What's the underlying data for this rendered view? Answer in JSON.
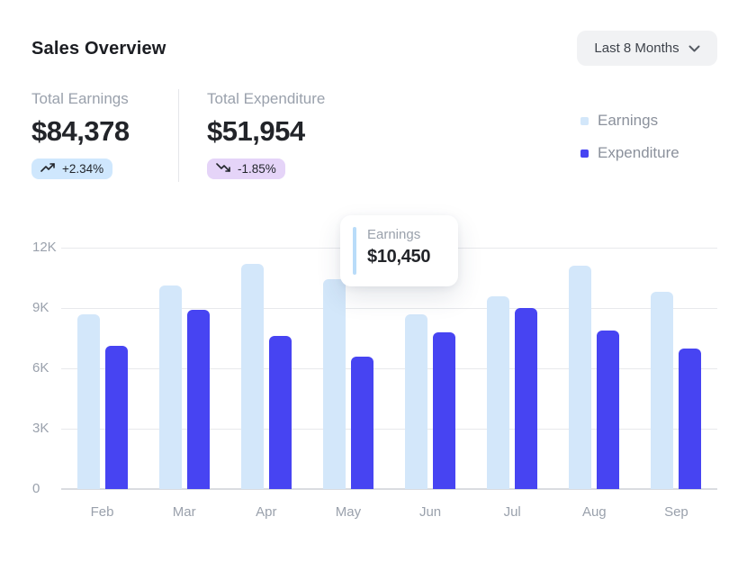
{
  "header": {
    "title": "Sales Overview",
    "range_dropdown": {
      "label": "Last 8 Months",
      "icon": "chevron-down"
    }
  },
  "stats": [
    {
      "label": "Total Earnings",
      "value": "$84,378",
      "delta": "+2.34%",
      "trend": "up",
      "icon": "trending-up",
      "badge_bg": "#cfe7fd",
      "badge_text": "#22262c"
    },
    {
      "label": "Total Expenditure",
      "value": "$51,954",
      "delta": "-1.85%",
      "trend": "down",
      "icon": "trending-down",
      "badge_bg": "#e5d4f8",
      "badge_text": "#22262c"
    }
  ],
  "legend": {
    "position": "top-right",
    "items": [
      {
        "label": "Earnings",
        "color": "#d3e7fa"
      },
      {
        "label": "Expenditure",
        "color": "#4744f2"
      }
    ]
  },
  "tooltip": {
    "label": "Earnings",
    "value": "$10,450",
    "accent_color": "#b9dcf9"
  },
  "chart_data": {
    "type": "bar",
    "title": "Sales Overview",
    "categories": [
      "Feb",
      "Mar",
      "Apr",
      "May",
      "Jun",
      "Jul",
      "Aug",
      "Sep"
    ],
    "series": [
      {
        "name": "Earnings",
        "color": "#d3e7fa",
        "values": [
          8700,
          10100,
          11200,
          10450,
          8700,
          9600,
          11100,
          9800
        ]
      },
      {
        "name": "Expenditure",
        "color": "#4744f2",
        "values": [
          7100,
          8900,
          7600,
          6600,
          7800,
          9000,
          7900,
          7000
        ]
      }
    ],
    "xlabel": "",
    "ylabel": "",
    "ylim": [
      0,
      12000
    ],
    "yticks": [
      {
        "value": 0,
        "label": "0"
      },
      {
        "value": 3000,
        "label": "3K"
      },
      {
        "value": 6000,
        "label": "6K"
      },
      {
        "value": 9000,
        "label": "9K"
      },
      {
        "value": 12000,
        "label": "12K"
      }
    ],
    "grid": "horizontal",
    "legend_position": "top-right"
  },
  "colors": {
    "grid": "#e8e9ec",
    "baseline": "#dadce0",
    "axis_text": "#9aa1ac",
    "text_dark": "#222429",
    "text_gray": "#9aa1ac",
    "dropdown_bg": "#f1f2f4"
  }
}
